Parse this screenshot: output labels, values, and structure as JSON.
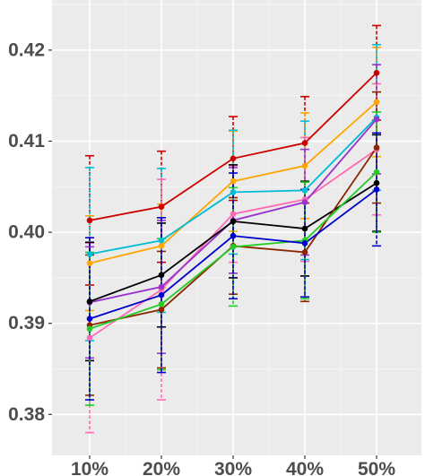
{
  "chart_data": {
    "type": "line",
    "title": "",
    "xlabel": "",
    "ylabel": "",
    "categories": [
      "10%",
      "20%",
      "30%",
      "40%",
      "50%"
    ],
    "ylim": [
      0.3755,
      0.4255
    ],
    "y_ticks": [
      0.38,
      0.39,
      0.4,
      0.41,
      0.42
    ],
    "y_tick_labels": [
      "0.38",
      "0.39",
      "0.40",
      "0.41",
      "0.42"
    ],
    "grid": true,
    "legend": "none",
    "panel_background": "#ebebeb",
    "series": [
      {
        "color": "#cc0000",
        "values": [
          0.4013,
          0.4028,
          0.4081,
          0.4098,
          0.4175
        ],
        "errors": [
          0.0071,
          0.0061,
          0.0046,
          0.0051,
          0.0052
        ]
      },
      {
        "color": "#ffa500",
        "values": [
          0.3966,
          0.3985,
          0.4056,
          0.4073,
          0.4143
        ],
        "errors": [
          0.0052,
          0.0046,
          0.0055,
          0.0058,
          0.006
        ]
      },
      {
        "color": "#00bcd4",
        "values": [
          0.3976,
          0.3991,
          0.4044,
          0.4046,
          0.4126
        ],
        "errors": [
          0.0095,
          0.0079,
          0.0068,
          0.0076,
          0.008
        ]
      },
      {
        "color": "#ff69b4",
        "values": [
          0.3884,
          0.3937,
          0.402,
          0.4036,
          0.4091
        ],
        "errors": [
          0.0104,
          0.0121,
          0.0053,
          0.0068,
          0.0072
        ]
      },
      {
        "color": "#9932cc",
        "values": [
          0.3923,
          0.394,
          0.4013,
          0.4033,
          0.4124
        ],
        "errors": [
          0.0061,
          0.0073,
          0.0058,
          0.0058,
          0.006
        ]
      },
      {
        "color": "#000000",
        "values": [
          0.3924,
          0.3953,
          0.4012,
          0.4004,
          0.4054
        ],
        "errors": [
          0.0065,
          0.0057,
          0.0062,
          0.0052,
          0.0053
        ]
      },
      {
        "color": "#8b2500",
        "values": [
          0.3898,
          0.3915,
          0.3985,
          0.3978,
          0.4093
        ],
        "errors": [
          0.0077,
          0.0064,
          0.0053,
          0.0054,
          0.0061
        ]
      },
      {
        "color": "#22cc22",
        "values": [
          0.3894,
          0.3921,
          0.3984,
          0.3991,
          0.4066
        ],
        "errors": [
          0.0084,
          0.0072,
          0.0065,
          0.0064,
          0.0066
        ]
      },
      {
        "color": "#0000cc",
        "values": [
          0.3905,
          0.3931,
          0.3996,
          0.3988,
          0.4047
        ],
        "errors": [
          0.0089,
          0.0085,
          0.0069,
          0.0059,
          0.0062
        ]
      }
    ]
  }
}
